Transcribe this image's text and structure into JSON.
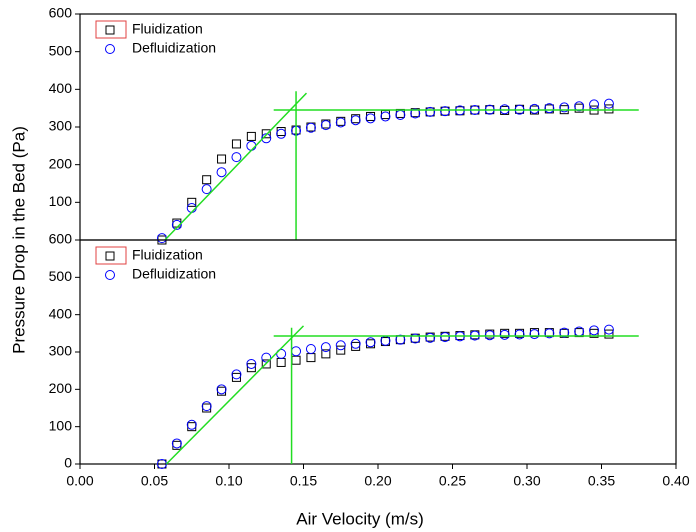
{
  "x_label": "Air Velocity (m/s)",
  "y_label": "Pressure Drop in the Bed (Pa)",
  "chart_data": [
    {
      "type": "scatter",
      "x": [
        0.055,
        0.065,
        0.075,
        0.085,
        0.095,
        0.105,
        0.115,
        0.125,
        0.135,
        0.145,
        0.155,
        0.165,
        0.175,
        0.185,
        0.195,
        0.205,
        0.215,
        0.225,
        0.235,
        0.245,
        0.255,
        0.265,
        0.275,
        0.285,
        0.295,
        0.305,
        0.315,
        0.325,
        0.335,
        0.345,
        0.355
      ],
      "series": [
        {
          "name": "Fluidization",
          "color": "#000000",
          "marker": "square",
          "values": [
            0,
            45,
            100,
            160,
            215,
            255,
            275,
            282,
            288,
            292,
            300,
            308,
            315,
            322,
            328,
            333,
            336,
            338,
            340,
            342,
            343,
            345,
            346,
            344,
            347,
            345,
            348,
            346,
            350,
            345,
            348
          ]
        },
        {
          "name": "Defluidization",
          "color": "#0000ff",
          "marker": "circle",
          "values": [
            5,
            40,
            85,
            135,
            180,
            220,
            250,
            270,
            282,
            290,
            298,
            305,
            312,
            318,
            323,
            328,
            332,
            336,
            340,
            342,
            344,
            345,
            346,
            347,
            346,
            348,
            350,
            352,
            355,
            360,
            362
          ]
        }
      ],
      "fit_color": "#22dd22",
      "fit_lines": [
        {
          "x": [
            0.057,
            0.152
          ],
          "y": [
            0,
            390
          ]
        },
        {
          "x": [
            0.13,
            0.375
          ],
          "y": [
            345,
            345
          ]
        },
        {
          "x": [
            0.145,
            0.145
          ],
          "y": [
            0,
            395
          ]
        }
      ],
      "xlim": [
        0,
        0.4
      ],
      "ylim": [
        0,
        600
      ],
      "yticks": [
        100,
        200,
        300,
        400,
        500,
        600
      ],
      "legend": "upper left"
    },
    {
      "type": "scatter",
      "x": [
        0.055,
        0.065,
        0.075,
        0.085,
        0.095,
        0.105,
        0.115,
        0.125,
        0.135,
        0.145,
        0.155,
        0.165,
        0.175,
        0.185,
        0.195,
        0.205,
        0.215,
        0.225,
        0.235,
        0.245,
        0.255,
        0.265,
        0.275,
        0.285,
        0.295,
        0.305,
        0.315,
        0.325,
        0.335,
        0.345,
        0.355
      ],
      "series": [
        {
          "name": "Fluidization",
          "color": "#000000",
          "marker": "square",
          "values": [
            0,
            50,
            100,
            150,
            195,
            232,
            258,
            268,
            272,
            278,
            285,
            295,
            305,
            315,
            322,
            328,
            333,
            337,
            340,
            342,
            344,
            346,
            348,
            350,
            350,
            352,
            352,
            350,
            352,
            350,
            348
          ]
        },
        {
          "name": "Defluidization",
          "color": "#0000ff",
          "marker": "circle",
          "values": [
            0,
            55,
            105,
            155,
            200,
            240,
            268,
            285,
            295,
            302,
            308,
            313,
            318,
            322,
            326,
            330,
            333,
            336,
            338,
            340,
            342,
            344,
            345,
            346,
            347,
            348,
            350,
            352,
            355,
            358,
            360
          ]
        }
      ],
      "fit_color": "#22dd22",
      "fit_lines": [
        {
          "x": [
            0.058,
            0.15
          ],
          "y": [
            0,
            370
          ]
        },
        {
          "x": [
            0.13,
            0.375
          ],
          "y": [
            343,
            343
          ]
        },
        {
          "x": [
            0.142,
            0.142
          ],
          "y": [
            0,
            365
          ]
        }
      ],
      "xlim": [
        0,
        0.4
      ],
      "ylim": [
        0,
        600
      ],
      "yticks": [
        0,
        100,
        200,
        300,
        400,
        500,
        600
      ],
      "xticks": [
        {
          "value": 0,
          "label": "0.00"
        },
        {
          "value": 0.05,
          "label": "0.05"
        },
        {
          "value": 0.1,
          "label": "0.10"
        },
        {
          "value": 0.15,
          "label": "0.15"
        },
        {
          "value": 0.2,
          "label": "0.20"
        },
        {
          "value": 0.25,
          "label": "0.25"
        },
        {
          "value": 0.3,
          "label": "0.30"
        },
        {
          "value": 0.35,
          "label": "0.35"
        },
        {
          "value": 0.4,
          "label": "0.40"
        }
      ],
      "legend": "upper left"
    }
  ]
}
